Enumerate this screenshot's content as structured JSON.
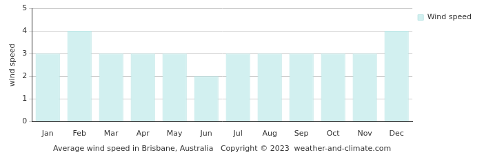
{
  "chart_data": {
    "type": "bar",
    "categories": [
      "Jan",
      "Feb",
      "Mar",
      "Apr",
      "May",
      "Jun",
      "Jul",
      "Aug",
      "Sep",
      "Oct",
      "Nov",
      "Dec"
    ],
    "series": [
      {
        "name": "Wind speed",
        "color": "#d2f0f0",
        "values": [
          3,
          4,
          3,
          3,
          3,
          2,
          3,
          3,
          3,
          3,
          3,
          4
        ]
      }
    ],
    "ylabel": "wind speed",
    "xlabel": "Average wind speed in Brisbane, Australia   Copyright © 2023  weather-and-climate.com",
    "ylim": [
      0,
      5
    ],
    "yticks": [
      0,
      1,
      2,
      3,
      4,
      5
    ],
    "grid": true,
    "legend": "right"
  }
}
